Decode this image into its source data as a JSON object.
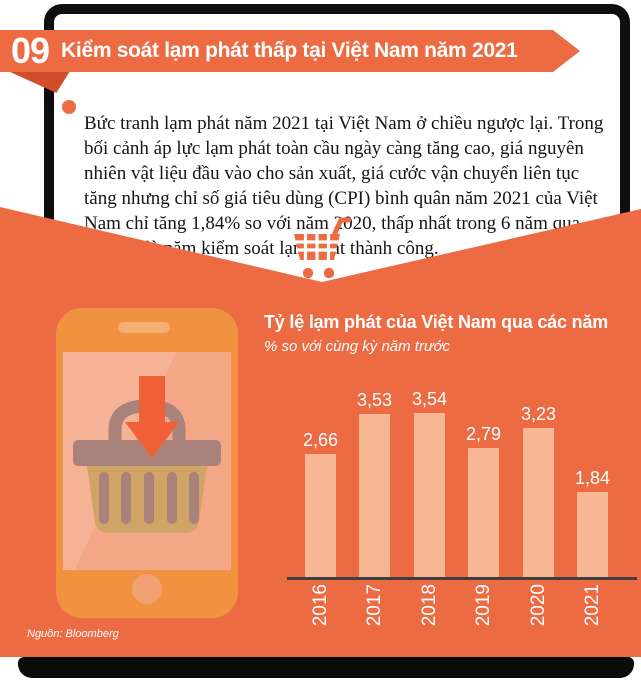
{
  "header": {
    "number": "09",
    "title": "Kiểm soát lạm phát thấp tại Việt Nam năm 2021"
  },
  "intro": {
    "text": "Bức tranh lạm phát năm 2021 tại Việt Nam ở chiều ngược lại. Trong bối cảnh áp lực lạm phát toàn cầu ngày càng tăng cao, giá nguyên nhiên vật liệu đầu vào cho sản xuất, giá cước vận chuyển liên tục tăng nhưng chỉ số giá tiêu dùng (CPI) bình quân năm 2021 của Việt Nam chỉ tăng 1,84% so với năm 2020, thấp nhất trong 6 năm qua, tiếp tục là năm kiểm soát lạm phát thành công."
  },
  "chart_data": {
    "type": "bar",
    "title": "Tỷ lệ lạm phát của Việt Nam qua các năm",
    "subtitle": "% so với cùng kỳ năm trước",
    "categories": [
      "2016",
      "2017",
      "2018",
      "2019",
      "2020",
      "2021"
    ],
    "values": [
      2.66,
      3.53,
      3.54,
      2.79,
      3.23,
      1.84
    ],
    "value_labels": [
      "2,66",
      "3,53",
      "3,54",
      "2,79",
      "3,23",
      "1,84"
    ],
    "ylim": [
      0,
      4
    ],
    "legend": "none",
    "grid": false,
    "bar_color": "#F7B795",
    "axis_color": "#3F3F3F"
  },
  "source": "Nguồn: Bloomberg",
  "icons": {
    "cart": "shopping-cart-icon",
    "basket": "shopping-basket-icon",
    "arrow": "down-arrow-icon"
  },
  "colors": {
    "accent_orange": "#ED6B42",
    "fold_orange": "#D14E2B",
    "phone_orange": "#F0923F",
    "screen_salmon": "#F4A987",
    "bar_salmon": "#F7B795",
    "basket_tan": "#CFA465",
    "basket_brown": "#A9837B",
    "frame_black": "#0E0E0E"
  }
}
